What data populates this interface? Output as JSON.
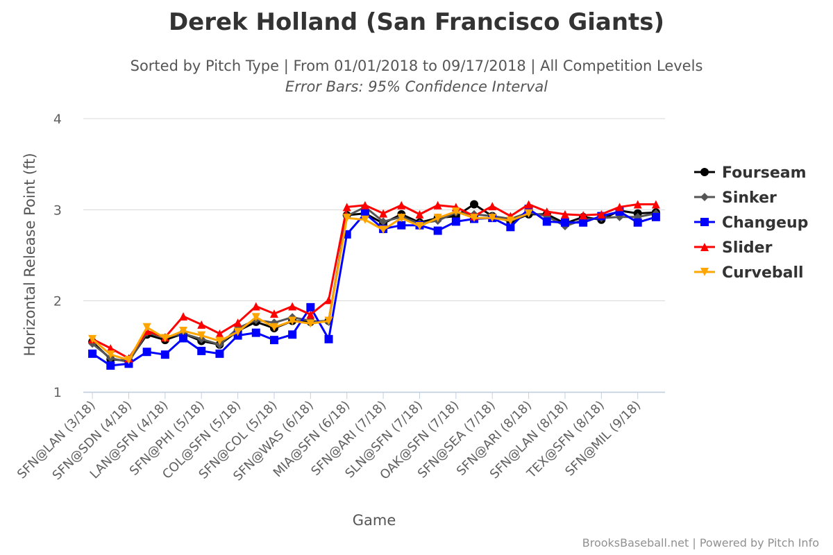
{
  "title": "Derek Holland (San Francisco Giants)",
  "subtitle": "Sorted by Pitch Type | From 01/01/2018 to 09/17/2018 | All Competition Levels",
  "subtitle2": "Error Bars: 95% Confidence Interval",
  "credits": "BrooksBaseball.net | Powered by Pitch Info",
  "chart_data": {
    "type": "line",
    "title": "Derek Holland (San Francisco Giants)",
    "xlabel": "Game",
    "ylabel": "Horizontal Release Point (ft)",
    "ylim": [
      1,
      4
    ],
    "yticks": [
      1,
      2,
      3,
      4
    ],
    "grid": true,
    "legend_position": "right",
    "categories": [
      "SFN@LAN (3/18)",
      "",
      "SFN@SDN (4/18)",
      "",
      "LAN@SFN (4/18)",
      "",
      "SFN@PHI (5/18)",
      "",
      "COL@SFN (5/18)",
      "",
      "SFN@COL (5/18)",
      "",
      "SFN@WAS (6/18)",
      "",
      "MIA@SFN (6/18)",
      "",
      "SFN@ARI (7/18)",
      "",
      "SLN@SFN (7/18)",
      "",
      "OAK@SFN (7/18)",
      "",
      "SFN@SEA (7/18)",
      "",
      "SFN@ARI (8/18)",
      "",
      "SFN@LAN (8/18)",
      "",
      "TEX@SFN (8/18)",
      "",
      "SFN@MIL (9/18)",
      ""
    ],
    "tick_labels": [
      "SFN@LAN (3/18)",
      "SFN@SDN (4/18)",
      "LAN@SFN (4/18)",
      "SFN@PHI (5/18)",
      "COL@SFN (5/18)",
      "SFN@COL (5/18)",
      "SFN@WAS (6/18)",
      "MIA@SFN (6/18)",
      "SFN@ARI (7/18)",
      "SLN@SFN (7/18)",
      "OAK@SFN (7/18)",
      "SFN@SEA (7/18)",
      "SFN@ARI (8/18)",
      "SFN@LAN (8/18)",
      "TEX@SFN (8/18)",
      "SFN@MIL (9/18)"
    ],
    "series": [
      {
        "name": "Fourseam",
        "color": "#000000",
        "marker": "circle",
        "values": [
          1.55,
          1.36,
          1.34,
          1.63,
          1.57,
          1.64,
          1.56,
          1.52,
          1.67,
          1.77,
          1.7,
          1.78,
          1.77,
          1.78,
          2.94,
          2.96,
          2.85,
          2.95,
          2.86,
          2.91,
          2.93,
          3.06,
          2.93,
          2.87,
          2.95,
          2.95,
          2.85,
          2.92,
          2.89,
          2.99,
          2.96,
          2.97
        ]
      },
      {
        "name": "Sinker",
        "color": "#555555",
        "marker": "diamond",
        "values": [
          1.53,
          1.37,
          1.33,
          1.65,
          1.6,
          1.64,
          1.58,
          1.52,
          1.7,
          1.79,
          1.76,
          1.82,
          1.78,
          1.77,
          2.93,
          3.03,
          2.87,
          2.92,
          2.85,
          2.88,
          2.97,
          2.95,
          2.93,
          2.9,
          2.97,
          2.93,
          2.82,
          2.89,
          2.91,
          2.92,
          2.92,
          2.96
        ]
      },
      {
        "name": "Changeup",
        "color": "#0000ff",
        "marker": "square",
        "values": [
          1.42,
          1.29,
          1.31,
          1.44,
          1.41,
          1.59,
          1.45,
          1.42,
          1.62,
          1.65,
          1.57,
          1.63,
          1.93,
          1.58,
          2.73,
          2.96,
          2.79,
          2.83,
          2.83,
          2.77,
          2.87,
          2.9,
          2.91,
          2.81,
          3.01,
          2.87,
          2.86,
          2.86,
          2.93,
          2.98,
          2.86,
          2.92
        ]
      },
      {
        "name": "Slider",
        "color": "#ff0000",
        "marker": "triangle",
        "values": [
          1.58,
          1.48,
          1.37,
          1.67,
          1.6,
          1.83,
          1.74,
          1.64,
          1.76,
          1.94,
          1.86,
          1.94,
          1.85,
          2.01,
          3.03,
          3.05,
          2.96,
          3.05,
          2.95,
          3.05,
          3.03,
          2.93,
          3.04,
          2.93,
          3.06,
          2.98,
          2.95,
          2.94,
          2.95,
          3.03,
          3.06,
          3.06
        ]
      },
      {
        "name": "Curveball",
        "color": "#ffa500",
        "marker": "triangle-down",
        "values": [
          1.58,
          1.41,
          1.35,
          1.71,
          1.59,
          1.67,
          1.62,
          1.56,
          1.66,
          1.82,
          1.71,
          1.78,
          1.75,
          1.78,
          2.91,
          2.89,
          2.78,
          2.91,
          2.82,
          2.91,
          2.98,
          2.91,
          2.91,
          2.88,
          2.96,
          null,
          null,
          null,
          null,
          null,
          null,
          null
        ]
      }
    ]
  }
}
